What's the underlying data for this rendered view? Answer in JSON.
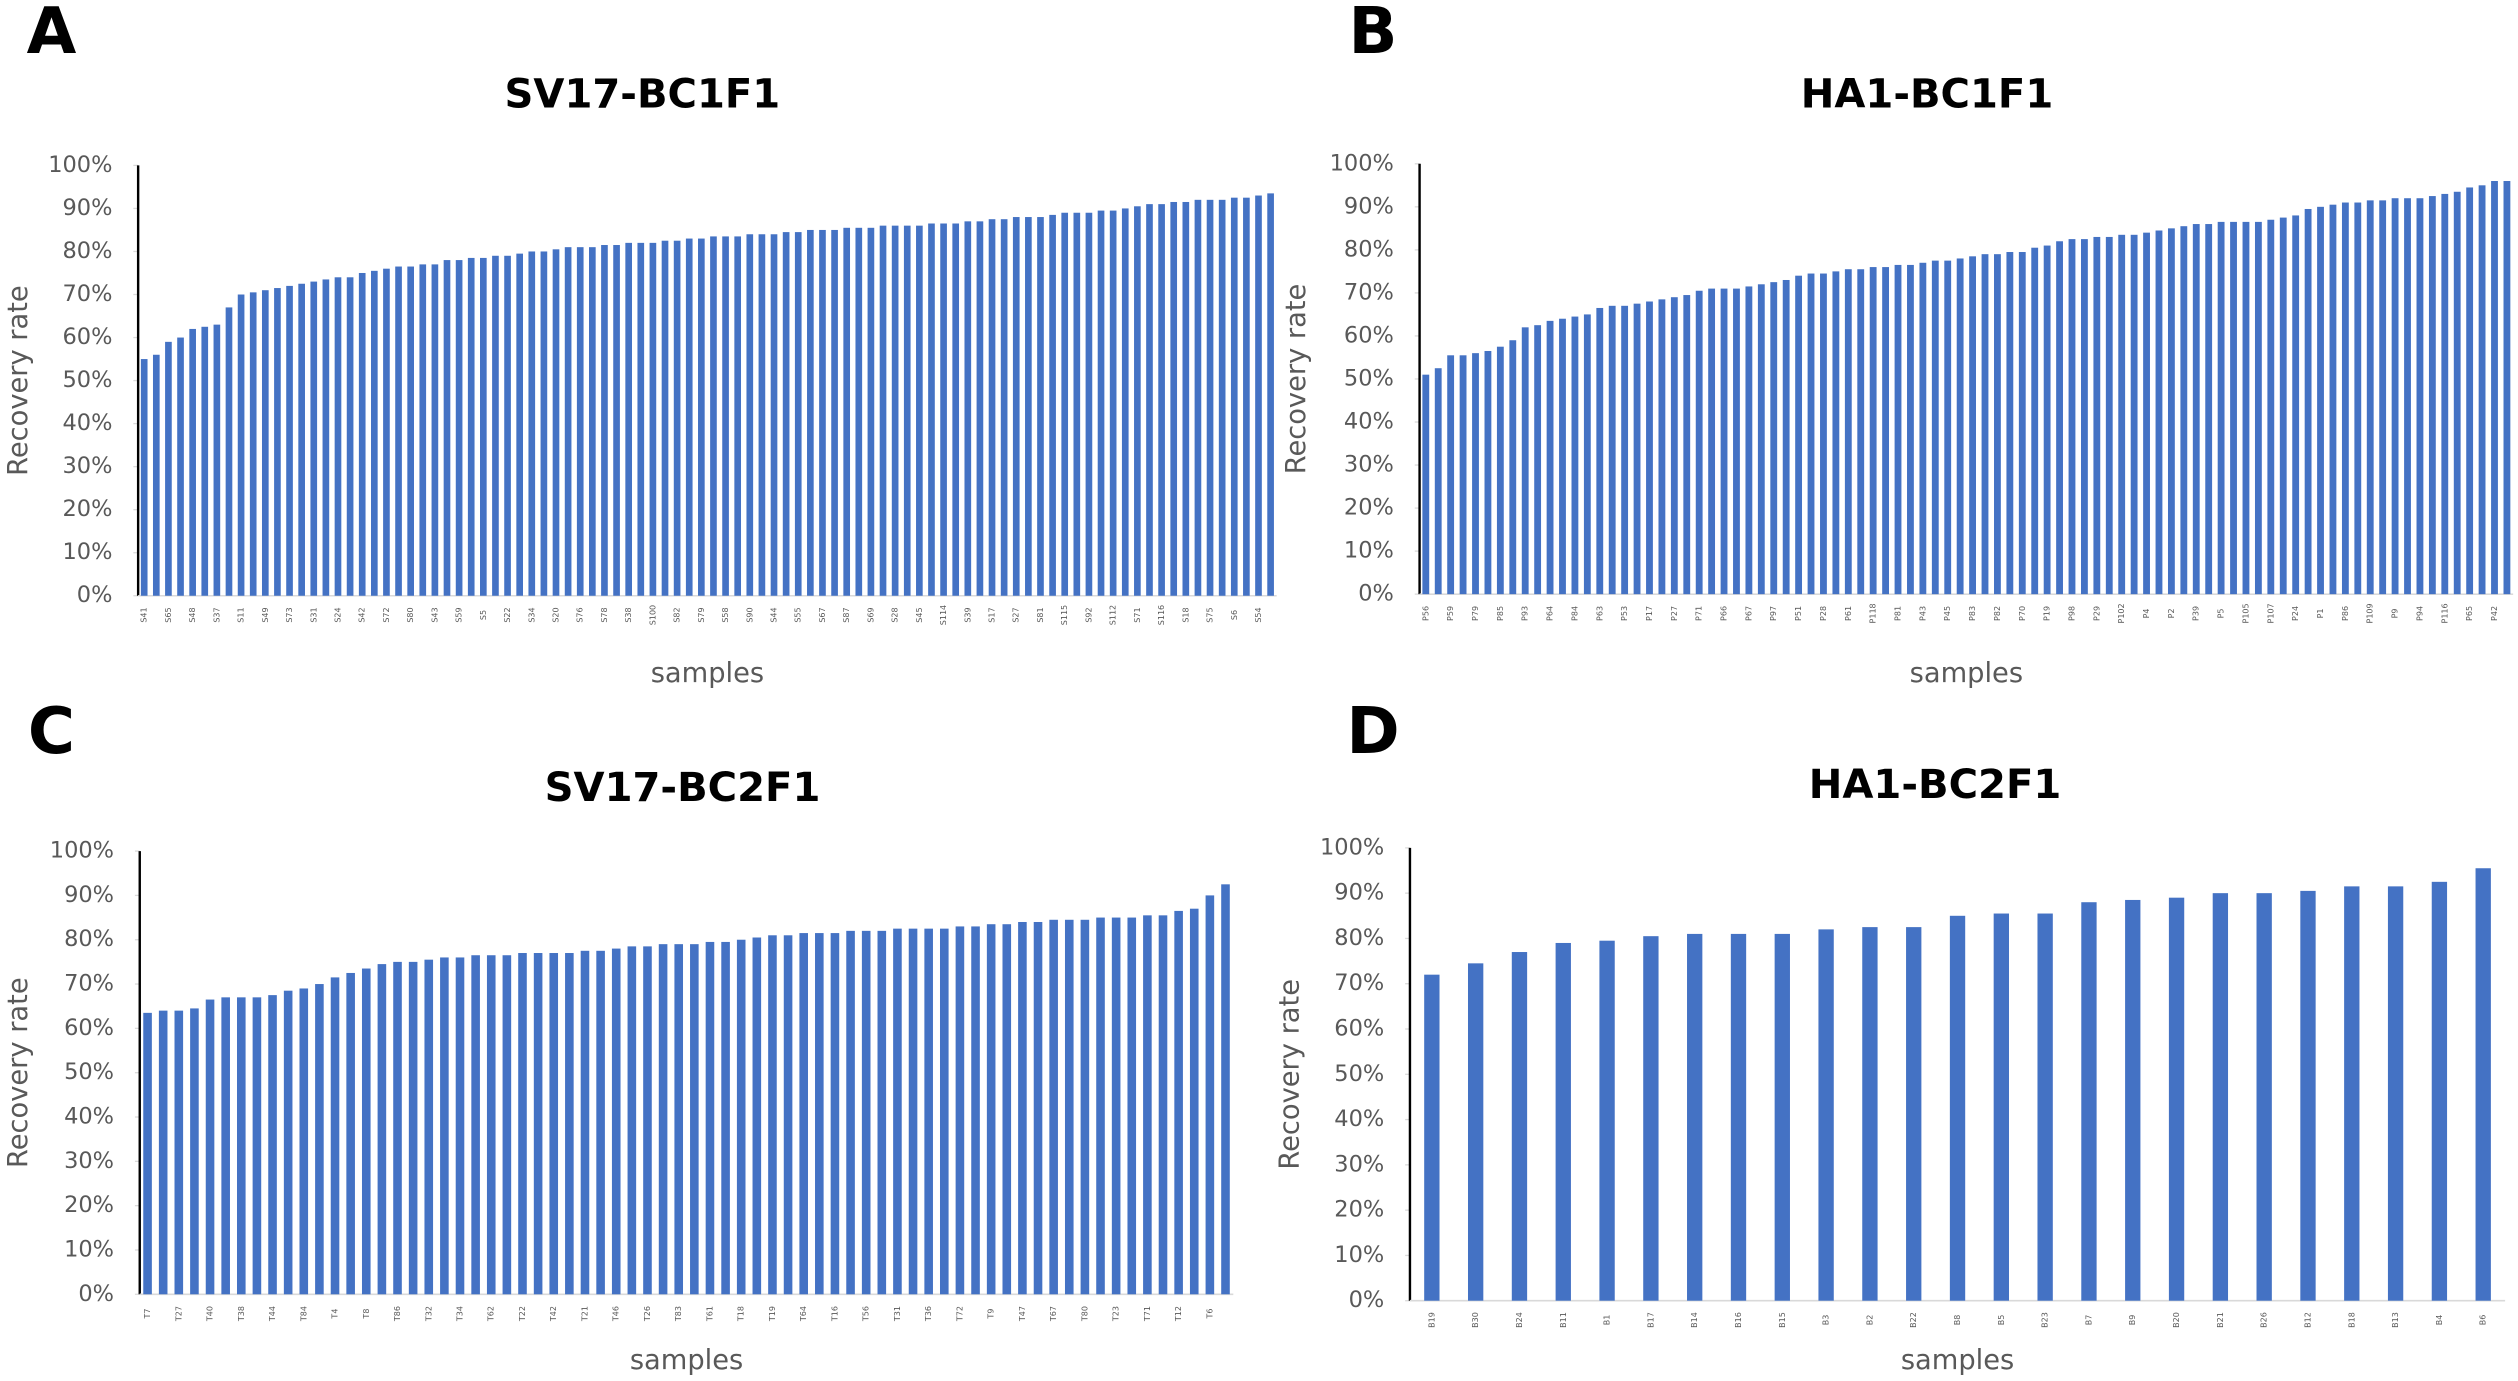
{
  "chart_data": [
    {
      "type": "bar",
      "panel": "A",
      "title": "SV17-BC1F1",
      "ylabel": "Recovery rate",
      "xlabel": "samples",
      "color": "#4472c4",
      "categories": [
        "S41",
        null,
        "S65",
        null,
        "S48",
        null,
        "S37",
        null,
        "S11",
        null,
        "S49",
        null,
        "S73",
        null,
        "S31",
        null,
        "S24",
        null,
        "S42",
        null,
        "S72",
        null,
        "S80",
        null,
        "S43",
        null,
        "S59",
        null,
        "S5",
        null,
        "S22",
        null,
        "S34",
        null,
        "S20",
        null,
        "S76",
        null,
        "S78",
        null,
        "S38",
        null,
        "S100",
        null,
        "S82",
        null,
        "S79",
        null,
        "S58",
        null,
        "S90",
        null,
        "S44",
        null,
        "S55",
        null,
        "S67",
        null,
        "S87",
        null,
        "S69",
        null,
        "S28",
        null,
        "S45",
        null,
        "S114",
        null,
        "S39",
        null,
        "S17",
        null,
        "S27",
        null,
        "S81",
        null,
        "S115",
        null,
        "S92",
        null,
        "S112",
        null,
        "S71",
        null,
        "S116",
        null,
        "S18",
        null,
        "S75",
        null,
        "S6",
        null,
        "S54",
        null
      ],
      "values": [
        55,
        56,
        59,
        60,
        62,
        62.5,
        63,
        67,
        70,
        70.5,
        71,
        71.5,
        72,
        72.5,
        73,
        73.5,
        74,
        74,
        75,
        75.5,
        76,
        76.5,
        76.5,
        77,
        77,
        78,
        78,
        78.5,
        78.5,
        79,
        79,
        79.5,
        80,
        80,
        80.5,
        81,
        81,
        81,
        81.5,
        81.5,
        82,
        82,
        82,
        82.5,
        82.5,
        83,
        83,
        83.5,
        83.5,
        83.5,
        84,
        84,
        84,
        84.5,
        84.5,
        85,
        85,
        85,
        85.5,
        85.5,
        85.5,
        86,
        86,
        86,
        86,
        86.5,
        86.5,
        86.5,
        87,
        87,
        87.5,
        87.5,
        88,
        88,
        88,
        88.5,
        89,
        89,
        89,
        89.5,
        89.5,
        90,
        90.5,
        91,
        91,
        91.5,
        91.5,
        92,
        92,
        92,
        92.5,
        92.5,
        93,
        93.5
      ],
      "ylim": [
        0,
        100
      ],
      "yticks": [
        {
          "value": 0,
          "label": "0%"
        },
        {
          "value": 10,
          "label": "10%"
        },
        {
          "value": 20,
          "label": "20%"
        },
        {
          "value": 30,
          "label": "30%"
        },
        {
          "value": 40,
          "label": "40%"
        },
        {
          "value": 50,
          "label": "50%"
        },
        {
          "value": 60,
          "label": "60%"
        },
        {
          "value": 70,
          "label": "70%"
        },
        {
          "value": 80,
          "label": "80%"
        },
        {
          "value": 90,
          "label": "90%"
        },
        {
          "value": 100,
          "label": "100%"
        }
      ]
    },
    {
      "type": "bar",
      "panel": "B",
      "title": "HA1-BC1F1",
      "ylabel": "Recovery rate",
      "xlabel": "samples",
      "color": "#4472c4",
      "categories": [
        "P56",
        null,
        "P59",
        null,
        "P79",
        null,
        "P85",
        null,
        "P93",
        null,
        "P64",
        null,
        "P84",
        null,
        "P63",
        null,
        "P53",
        null,
        "P17",
        null,
        "P27",
        null,
        "P71",
        null,
        "P66",
        null,
        "P67",
        null,
        "P97",
        null,
        "P51",
        null,
        "P28",
        null,
        "P61",
        null,
        "P118",
        null,
        "P81",
        null,
        "P43",
        null,
        "P45",
        null,
        "P83",
        null,
        "P82",
        null,
        "P70",
        null,
        "P19",
        null,
        "P98",
        null,
        "P29",
        null,
        "P102",
        null,
        "P4",
        null,
        "P2",
        null,
        "P39",
        null,
        "P5",
        null,
        "P105",
        null,
        "P107",
        null,
        "P24",
        null,
        "P1",
        null,
        "P86",
        null,
        "P109",
        null,
        "P9",
        null,
        "P94",
        null,
        "P116",
        null,
        "P65",
        null,
        "P42",
        null
      ],
      "values": [
        51,
        52.5,
        55.5,
        55.5,
        56,
        56.5,
        57.5,
        59,
        62,
        62.5,
        63.5,
        64,
        64.5,
        65,
        66.5,
        67,
        67,
        67.5,
        68,
        68.5,
        69,
        69.5,
        70.5,
        71,
        71,
        71,
        71.5,
        72,
        72.5,
        73,
        74,
        74.5,
        74.5,
        75,
        75.5,
        75.5,
        76,
        76,
        76.5,
        76.5,
        77,
        77.5,
        77.5,
        78,
        78.5,
        79,
        79,
        79.5,
        79.5,
        80.5,
        81,
        82,
        82.5,
        82.5,
        83,
        83,
        83.5,
        83.5,
        84,
        84.5,
        85,
        85.5,
        86,
        86,
        86.5,
        86.5,
        86.5,
        86.5,
        87,
        87.5,
        88,
        89.5,
        90,
        90.5,
        91,
        91,
        91.5,
        91.5,
        92,
        92,
        92,
        92.5,
        93,
        93.5,
        94.5,
        95,
        96,
        96
      ],
      "ylim": [
        0,
        100
      ],
      "yticks": [
        {
          "value": 0,
          "label": "0%"
        },
        {
          "value": 10,
          "label": "10%"
        },
        {
          "value": 20,
          "label": "20%"
        },
        {
          "value": 30,
          "label": "30%"
        },
        {
          "value": 40,
          "label": "40%"
        },
        {
          "value": 50,
          "label": "50%"
        },
        {
          "value": 60,
          "label": "60%"
        },
        {
          "value": 70,
          "label": "70%"
        },
        {
          "value": 80,
          "label": "80%"
        },
        {
          "value": 90,
          "label": "90%"
        },
        {
          "value": 100,
          "label": "100%"
        }
      ]
    },
    {
      "type": "bar",
      "panel": "C",
      "title": "SV17-BC2F1",
      "ylabel": "Recovery rate",
      "xlabel": "samples",
      "color": "#4472c4",
      "categories": [
        "T7",
        null,
        "T27",
        null,
        "T40",
        null,
        "T38",
        null,
        "T44",
        null,
        "T84",
        null,
        "T4",
        null,
        "T8",
        null,
        "T86",
        null,
        "T32",
        null,
        "T34",
        null,
        "T62",
        null,
        "T22",
        null,
        "T42",
        null,
        "T21",
        null,
        "T46",
        null,
        "T26",
        null,
        "T83",
        null,
        "T61",
        null,
        "T18",
        null,
        "T19",
        null,
        "T64",
        null,
        "T16",
        null,
        "T56",
        null,
        "T31",
        null,
        "T36",
        null,
        "T72",
        null,
        "T9",
        null,
        "T47",
        null,
        "T67",
        null,
        "T80",
        null,
        "T23",
        null,
        "T71",
        null,
        "T12",
        null,
        "T6",
        null
      ],
      "values": [
        63.5,
        64,
        64,
        64.5,
        66.5,
        67,
        67,
        67,
        67.5,
        68.5,
        69,
        70,
        71.5,
        72.5,
        73.5,
        74.5,
        75,
        75,
        75.5,
        76,
        76,
        76.5,
        76.5,
        76.5,
        77,
        77,
        77,
        77,
        77.5,
        77.5,
        78,
        78.5,
        78.5,
        79,
        79,
        79,
        79.5,
        79.5,
        80,
        80.5,
        81,
        81,
        81.5,
        81.5,
        81.5,
        82,
        82,
        82,
        82.5,
        82.5,
        82.5,
        82.5,
        83,
        83,
        83.5,
        83.5,
        84,
        84,
        84.5,
        84.5,
        84.5,
        85,
        85,
        85,
        85.5,
        85.5,
        86.5,
        87,
        90,
        92.5
      ],
      "ylim": [
        0,
        100
      ],
      "yticks": [
        {
          "value": 0,
          "label": "0%"
        },
        {
          "value": 10,
          "label": "10%"
        },
        {
          "value": 20,
          "label": "20%"
        },
        {
          "value": 30,
          "label": "30%"
        },
        {
          "value": 40,
          "label": "40%"
        },
        {
          "value": 50,
          "label": "50%"
        },
        {
          "value": 60,
          "label": "60%"
        },
        {
          "value": 70,
          "label": "70%"
        },
        {
          "value": 80,
          "label": "80%"
        },
        {
          "value": 90,
          "label": "90%"
        },
        {
          "value": 100,
          "label": "100%"
        }
      ]
    },
    {
      "type": "bar",
      "panel": "D",
      "title": "HA1-BC2F1",
      "ylabel": "Recovery rate",
      "xlabel": "samples",
      "color": "#4472c4",
      "categories": [
        "B19",
        "B30",
        "B24",
        "B11",
        "B1",
        "B17",
        "B14",
        "B16",
        "B15",
        "B3",
        "B2",
        "B22",
        "B8",
        "B5",
        "B23",
        "B7",
        "B9",
        "B20",
        "B21",
        "B26",
        "B12",
        "B18",
        "B13",
        "B4",
        "B6"
      ],
      "values": [
        72,
        74.5,
        77,
        79,
        79.5,
        80.5,
        81,
        81,
        81,
        82,
        82.5,
        82.5,
        85,
        85.5,
        85.5,
        88,
        88.5,
        89,
        90,
        90,
        90.5,
        91.5,
        91.5,
        92.5,
        95.5
      ],
      "ylim": [
        0,
        100
      ],
      "yticks": [
        {
          "value": 0,
          "label": "0%"
        },
        {
          "value": 10,
          "label": "10%"
        },
        {
          "value": 20,
          "label": "20%"
        },
        {
          "value": 30,
          "label": "30%"
        },
        {
          "value": 40,
          "label": "40%"
        },
        {
          "value": 50,
          "label": "50%"
        },
        {
          "value": 60,
          "label": "60%"
        },
        {
          "value": 70,
          "label": "70%"
        },
        {
          "value": 80,
          "label": "80%"
        },
        {
          "value": 90,
          "label": "90%"
        },
        {
          "value": 100,
          "label": "100%"
        }
      ]
    }
  ]
}
